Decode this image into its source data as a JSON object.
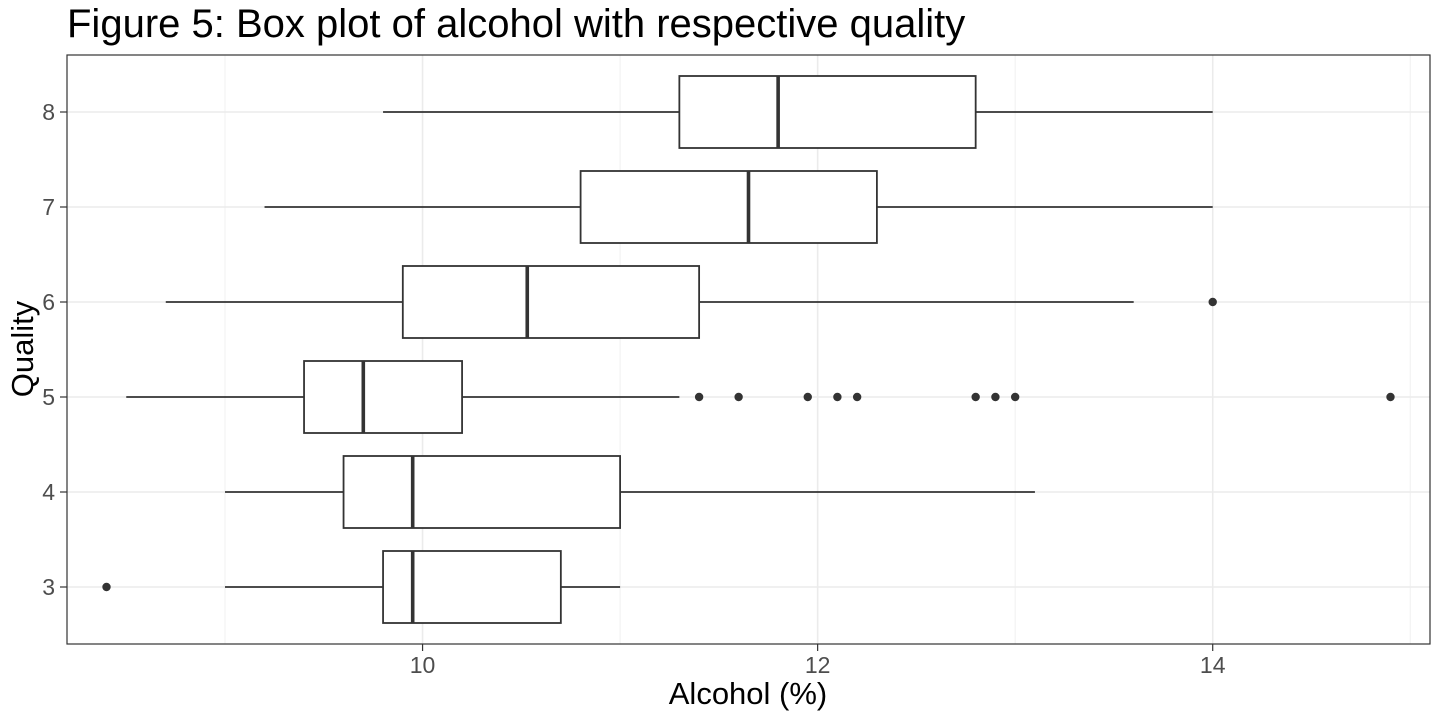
{
  "chart_data": {
    "type": "boxplot",
    "orientation": "horizontal",
    "title": "Figure 5: Box plot of alcohol with respective quality",
    "xlabel": "Alcohol (%)",
    "ylabel": "Quality",
    "xlim": [
      8.2,
      15.1
    ],
    "xticks": [
      "10",
      "12",
      "14"
    ],
    "grid": true,
    "categories": [
      "3",
      "4",
      "5",
      "6",
      "7",
      "8"
    ],
    "boxes": [
      {
        "quality": "3",
        "whisker_low": 9.0,
        "q1": 9.8,
        "median": 9.95,
        "q3": 10.7,
        "whisker_high": 11.0,
        "outliers": [
          8.4
        ]
      },
      {
        "quality": "4",
        "whisker_low": 9.0,
        "q1": 9.6,
        "median": 9.95,
        "q3": 11.0,
        "whisker_high": 13.1,
        "outliers": []
      },
      {
        "quality": "5",
        "whisker_low": 8.5,
        "q1": 9.4,
        "median": 9.7,
        "q3": 10.2,
        "whisker_high": 11.3,
        "outliers": [
          11.4,
          11.6,
          11.95,
          12.1,
          12.2,
          12.8,
          12.9,
          13.0,
          14.9
        ]
      },
      {
        "quality": "6",
        "whisker_low": 8.7,
        "q1": 9.9,
        "median": 10.53,
        "q3": 11.4,
        "whisker_high": 13.6,
        "outliers": [
          14.0
        ]
      },
      {
        "quality": "7",
        "whisker_low": 9.2,
        "q1": 10.8,
        "median": 11.65,
        "q3": 12.3,
        "whisker_high": 14.0,
        "outliers": []
      },
      {
        "quality": "8",
        "whisker_low": 9.8,
        "q1": 11.3,
        "median": 11.8,
        "q3": 12.8,
        "whisker_high": 14.0,
        "outliers": []
      }
    ]
  }
}
